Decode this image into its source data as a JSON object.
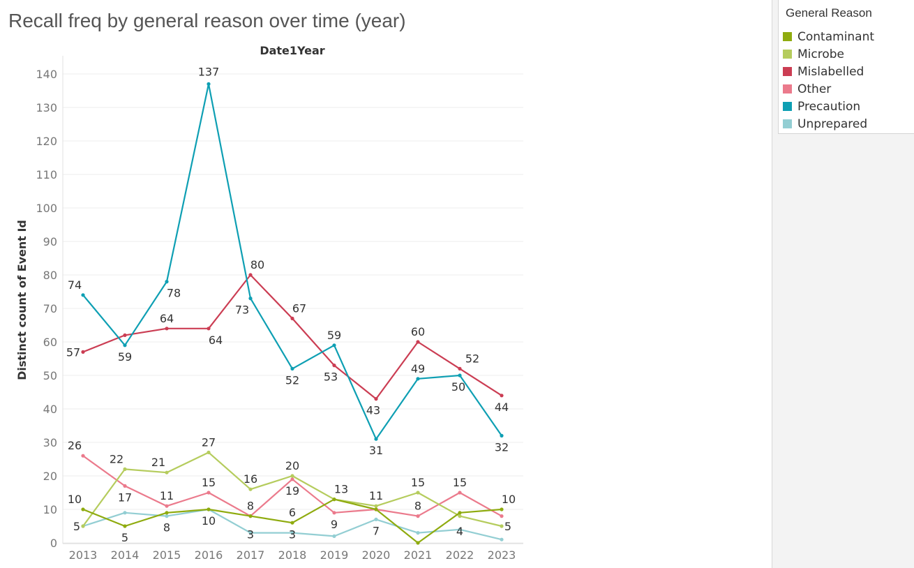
{
  "title": "Recall freq by general reason over time (year)",
  "legend": {
    "title": "General Reason",
    "items": [
      {
        "label": "Contaminant",
        "color": "#8fab0f"
      },
      {
        "label": "Microbe",
        "color": "#b5cc5d"
      },
      {
        "label": "Mislabelled",
        "color": "#cb3d53"
      },
      {
        "label": "Other",
        "color": "#eb7a8c"
      },
      {
        "label": "Precaution",
        "color": "#0e9fb3"
      },
      {
        "label": "Unprepared",
        "color": "#93ced3"
      }
    ]
  },
  "chart_data": {
    "type": "line",
    "title": "Recall freq by general reason over time (year)",
    "column_header": "Date1Year",
    "ylabel": "Distinct count of Event Id",
    "xlabel": "",
    "x": [
      "2013",
      "2014",
      "2015",
      "2016",
      "2017",
      "2018",
      "2019",
      "2020",
      "2021",
      "2022",
      "2023"
    ],
    "ylim": [
      0,
      140
    ],
    "y_ticks": [
      0,
      10,
      20,
      30,
      40,
      50,
      60,
      70,
      80,
      90,
      100,
      110,
      120,
      130,
      140
    ],
    "grid": true,
    "legend_position": "right",
    "series": [
      {
        "name": "Contaminant",
        "color": "#8fab0f",
        "values": [
          10,
          5,
          9,
          10,
          8,
          6,
          13,
          10,
          0,
          9,
          10
        ]
      },
      {
        "name": "Microbe",
        "color": "#b5cc5d",
        "values": [
          5,
          22,
          21,
          27,
          16,
          20,
          13,
          11,
          15,
          8,
          5
        ]
      },
      {
        "name": "Mislabelled",
        "color": "#cb3d53",
        "values": [
          57,
          62,
          64,
          64,
          80,
          67,
          53,
          43,
          60,
          52,
          44
        ]
      },
      {
        "name": "Other",
        "color": "#eb7a8c",
        "values": [
          26,
          17,
          11,
          15,
          8,
          19,
          9,
          10,
          8,
          15,
          8
        ]
      },
      {
        "name": "Precaution",
        "color": "#0e9fb3",
        "values": [
          74,
          59,
          78,
          137,
          73,
          52,
          59,
          31,
          49,
          50,
          32
        ]
      },
      {
        "name": "Unprepared",
        "color": "#93ced3",
        "values": [
          5,
          9,
          8,
          10,
          3,
          3,
          2,
          7,
          3,
          4,
          1
        ]
      }
    ],
    "data_labels": [
      {
        "series": "Precaution",
        "x": "2013",
        "text": "74"
      },
      {
        "series": "Precaution",
        "x": "2014",
        "text": "59"
      },
      {
        "series": "Precaution",
        "x": "2015",
        "text": "78"
      },
      {
        "series": "Precaution",
        "x": "2016",
        "text": "137"
      },
      {
        "series": "Precaution",
        "x": "2017",
        "text": "73"
      },
      {
        "series": "Precaution",
        "x": "2018",
        "text": "52"
      },
      {
        "series": "Precaution",
        "x": "2019",
        "text": "59"
      },
      {
        "series": "Precaution",
        "x": "2020",
        "text": "31"
      },
      {
        "series": "Precaution",
        "x": "2021",
        "text": "49"
      },
      {
        "series": "Precaution",
        "x": "2022",
        "text": "50"
      },
      {
        "series": "Precaution",
        "x": "2023",
        "text": "32"
      },
      {
        "series": "Mislabelled",
        "x": "2013",
        "text": "57"
      },
      {
        "series": "Mislabelled",
        "x": "2015",
        "text": "64"
      },
      {
        "series": "Mislabelled",
        "x": "2016",
        "text": "64"
      },
      {
        "series": "Mislabelled",
        "x": "2017",
        "text": "80"
      },
      {
        "series": "Mislabelled",
        "x": "2018",
        "text": "67"
      },
      {
        "series": "Mislabelled",
        "x": "2019",
        "text": "53"
      },
      {
        "series": "Mislabelled",
        "x": "2020",
        "text": "43"
      },
      {
        "series": "Mislabelled",
        "x": "2021",
        "text": "60"
      },
      {
        "series": "Mislabelled",
        "x": "2022",
        "text": "52"
      },
      {
        "series": "Mislabelled",
        "x": "2023",
        "text": "44"
      },
      {
        "series": "Other",
        "x": "2013",
        "text": "26"
      },
      {
        "series": "Microbe",
        "x": "2014",
        "text": "22"
      },
      {
        "series": "Microbe",
        "x": "2015",
        "text": "21"
      },
      {
        "series": "Microbe",
        "x": "2016",
        "text": "27"
      },
      {
        "series": "Microbe",
        "x": "2017",
        "text": "16"
      },
      {
        "series": "Microbe",
        "x": "2018",
        "text": "20"
      },
      {
        "series": "Microbe",
        "x": "2019",
        "text": "13"
      },
      {
        "series": "Microbe",
        "x": "2020",
        "text": "11"
      },
      {
        "series": "Microbe",
        "x": "2021",
        "text": "15"
      },
      {
        "series": "Other",
        "x": "2014",
        "text": "17"
      },
      {
        "series": "Other",
        "x": "2015",
        "text": "11"
      },
      {
        "series": "Other",
        "x": "2016",
        "text": "15"
      },
      {
        "series": "Other",
        "x": "2017",
        "text": "8"
      },
      {
        "series": "Other",
        "x": "2018",
        "text": "19"
      },
      {
        "series": "Other",
        "x": "2019",
        "text": "9"
      },
      {
        "series": "Other",
        "x": "2021",
        "text": "8"
      },
      {
        "series": "Other",
        "x": "2022",
        "text": "15"
      },
      {
        "series": "Contaminant",
        "x": "2013",
        "text": "10"
      },
      {
        "series": "Contaminant",
        "x": "2014",
        "text": "5"
      },
      {
        "series": "Contaminant",
        "x": "2016",
        "text": "10"
      },
      {
        "series": "Contaminant",
        "x": "2018",
        "text": "6"
      },
      {
        "series": "Contaminant",
        "x": "2023",
        "text": "10"
      },
      {
        "series": "Microbe",
        "x": "2013",
        "text": "5"
      },
      {
        "series": "Microbe",
        "x": "2023",
        "text": "5"
      },
      {
        "series": "Unprepared",
        "x": "2015",
        "text": "8"
      },
      {
        "series": "Unprepared",
        "x": "2017",
        "text": "3"
      },
      {
        "series": "Unprepared",
        "x": "2018",
        "text": "3"
      },
      {
        "series": "Unprepared",
        "x": "2020",
        "text": "7"
      },
      {
        "series": "Unprepared",
        "x": "2022",
        "text": "4"
      }
    ]
  }
}
